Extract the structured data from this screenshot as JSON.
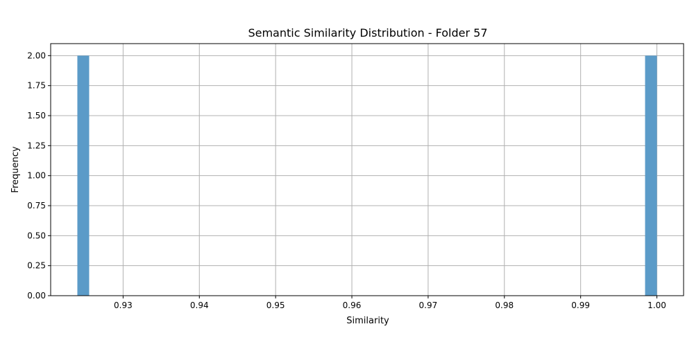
{
  "chart_data": {
    "type": "bar",
    "title": "Semantic Similarity Distribution - Folder 57",
    "xlabel": "Similarity",
    "ylabel": "Frequency",
    "xlim": [
      0.9205,
      1.0035
    ],
    "ylim": [
      0,
      2.1
    ],
    "grid": true,
    "color": "#5b9bc8",
    "bins": [
      {
        "x0": 0.924,
        "x1": 0.92555,
        "value": 2
      },
      {
        "x0": 0.99845,
        "x1": 1.0,
        "value": 2
      }
    ],
    "x_ticks": [
      {
        "value": 0.93,
        "label": "0.93"
      },
      {
        "value": 0.94,
        "label": "0.94"
      },
      {
        "value": 0.95,
        "label": "0.95"
      },
      {
        "value": 0.96,
        "label": "0.96"
      },
      {
        "value": 0.97,
        "label": "0.97"
      },
      {
        "value": 0.98,
        "label": "0.98"
      },
      {
        "value": 0.99,
        "label": "0.99"
      },
      {
        "value": 1.0,
        "label": "1.00"
      }
    ],
    "y_ticks": [
      {
        "value": 0.0,
        "label": "0.00"
      },
      {
        "value": 0.25,
        "label": "0.25"
      },
      {
        "value": 0.5,
        "label": "0.50"
      },
      {
        "value": 0.75,
        "label": "0.75"
      },
      {
        "value": 1.0,
        "label": "1.00"
      },
      {
        "value": 1.25,
        "label": "1.25"
      },
      {
        "value": 1.5,
        "label": "1.50"
      },
      {
        "value": 1.75,
        "label": "1.75"
      },
      {
        "value": 2.0,
        "label": "2.00"
      }
    ]
  }
}
